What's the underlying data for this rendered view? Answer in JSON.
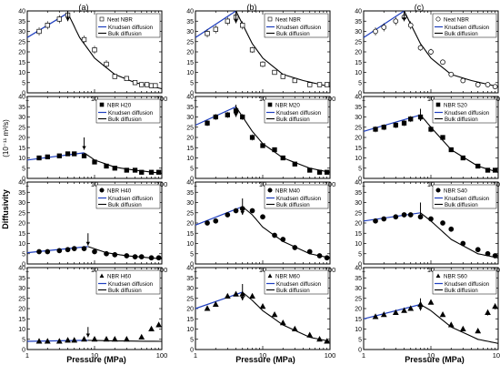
{
  "figure": {
    "column_letters": [
      "(a)",
      "(b)",
      "(c)"
    ],
    "xlabel": "Pressure (MPa)",
    "ylabel_main": "Diffusivity",
    "ylabel_unit": "(10⁻¹¹ m²/s)",
    "legend_knudsen": "Knudsen diffusion",
    "legend_bulk": "Bulk diffusion",
    "x_tick_labels": [
      "1",
      "10",
      "100"
    ]
  },
  "colors": {
    "knudsen": "#1f3fbf",
    "bulk": "#000000",
    "axis": "#000000"
  },
  "chart_data": [
    {
      "type": "scatter",
      "panel": "a-top",
      "sample": "Neat NBR",
      "marker": "open-square",
      "xscale": "log",
      "xlim": [
        1,
        100
      ],
      "ylim": [
        0,
        40
      ],
      "yticks": [
        0,
        5,
        10,
        15,
        20,
        25,
        30,
        35,
        40
      ],
      "x": [
        1.5,
        2,
        3,
        4,
        7,
        10,
        15,
        20,
        30,
        40,
        50,
        60,
        70,
        80
      ],
      "y": [
        30,
        33,
        36,
        38,
        26,
        21,
        14,
        8,
        7,
        5,
        4,
        4,
        3.5,
        3.5
      ],
      "err": [
        2,
        2,
        2,
        2,
        2,
        2,
        2,
        1,
        1,
        1,
        1,
        1,
        1,
        1
      ],
      "knudsen": [
        [
          1,
          27
        ],
        [
          4,
          39
        ]
      ],
      "bulk": [
        [
          4,
          39
        ],
        [
          6,
          27
        ],
        [
          10,
          17
        ],
        [
          20,
          9
        ],
        [
          40,
          5
        ],
        [
          100,
          2
        ]
      ],
      "arrow": {
        "x": 4,
        "y_tip": 35,
        "y_tail": 40
      }
    },
    {
      "type": "scatter",
      "panel": "a-mid1",
      "sample": "NBR H20",
      "marker": "filled-square",
      "xscale": "log",
      "xlim": [
        1,
        100
      ],
      "ylim": [
        0,
        40
      ],
      "yticks": [
        0,
        5,
        10,
        15,
        20,
        25,
        30,
        35,
        40
      ],
      "x": [
        1.5,
        2,
        3,
        4,
        5,
        7,
        10,
        15,
        20,
        30,
        40,
        50,
        70,
        90
      ],
      "y": [
        10,
        10.5,
        11,
        12,
        12,
        11,
        8,
        6,
        5,
        4,
        4,
        3,
        3,
        3
      ],
      "err": [
        1,
        1,
        1,
        1,
        1,
        1,
        1,
        0.5,
        0.5,
        0.5,
        0.5,
        0.5,
        0.5,
        0.5
      ],
      "knudsen": [
        [
          1,
          9
        ],
        [
          7,
          12.5
        ]
      ],
      "bulk": [
        [
          7,
          12.5
        ],
        [
          10,
          9
        ],
        [
          20,
          5.5
        ],
        [
          40,
          4
        ],
        [
          100,
          2.5
        ]
      ],
      "arrow": {
        "x": 7,
        "y_tip": 14,
        "y_tail": 20
      }
    },
    {
      "type": "scatter",
      "panel": "a-mid2",
      "sample": "NBR H40",
      "marker": "filled-circle",
      "xscale": "log",
      "xlim": [
        1,
        100
      ],
      "ylim": [
        0,
        40
      ],
      "yticks": [
        0,
        5,
        10,
        15,
        20,
        25,
        30,
        35,
        40
      ],
      "x": [
        1.5,
        2,
        3,
        4,
        5,
        7,
        10,
        15,
        20,
        30,
        40,
        50,
        70,
        90
      ],
      "y": [
        6,
        6,
        6.5,
        7,
        7.5,
        7.5,
        6,
        5,
        4.5,
        4,
        3.5,
        3.5,
        3,
        3
      ],
      "err": [
        0.5,
        0.5,
        0.5,
        0.5,
        0.5,
        0.5,
        0.5,
        0.5,
        0.5,
        0.5,
        0.5,
        0.5,
        0.5,
        0.5
      ],
      "knudsen": [
        [
          1,
          5.5
        ],
        [
          8,
          8.5
        ]
      ],
      "bulk": [
        [
          8,
          8.5
        ],
        [
          15,
          5.5
        ],
        [
          30,
          4
        ],
        [
          100,
          2.5
        ]
      ],
      "arrow": {
        "x": 8,
        "y_tip": 9,
        "y_tail": 15
      }
    },
    {
      "type": "scatter",
      "panel": "a-bot",
      "sample": "NBR H60",
      "marker": "filled-triangle",
      "xscale": "log",
      "xlim": [
        1,
        100
      ],
      "ylim": [
        0,
        40
      ],
      "yticks": [
        0,
        5,
        10,
        15,
        20,
        25,
        30,
        35,
        40
      ],
      "x": [
        1.5,
        2,
        3,
        4,
        5,
        7,
        10,
        15,
        20,
        30,
        50,
        70,
        90
      ],
      "y": [
        4,
        4,
        4,
        4.5,
        4.5,
        5,
        5,
        5,
        5,
        5,
        6,
        10,
        12
      ],
      "err": [
        0.5,
        0.5,
        0.5,
        0.5,
        0.5,
        0.5,
        0.5,
        0.5,
        0.5,
        0.5,
        0.5,
        1,
        1
      ],
      "knudsen": [
        [
          1,
          4
        ],
        [
          8,
          4.5
        ]
      ],
      "bulk": [
        [
          8,
          4.5
        ],
        [
          20,
          4.2
        ],
        [
          100,
          4
        ]
      ],
      "arrow": {
        "x": 8,
        "y_tip": 6,
        "y_tail": 11
      }
    },
    {
      "type": "scatter",
      "panel": "b-top",
      "sample": "Neat NBR",
      "marker": "open-square",
      "xscale": "log",
      "xlim": [
        1,
        100
      ],
      "ylim": [
        0,
        40
      ],
      "yticks": [
        0,
        5,
        10,
        15,
        20,
        25,
        30,
        35,
        40
      ],
      "x": [
        1.5,
        2,
        3,
        4,
        5,
        7,
        10,
        15,
        20,
        30,
        50,
        70,
        90
      ],
      "y": [
        29,
        31,
        35,
        37,
        33,
        21,
        14,
        10,
        8,
        6,
        4,
        4,
        4
      ],
      "err": [
        2,
        2,
        2,
        2,
        2,
        1.5,
        1.5,
        1,
        1,
        1,
        1,
        1,
        1
      ],
      "knudsen": [
        [
          1,
          27
        ],
        [
          4,
          40
        ]
      ],
      "bulk": [
        [
          4,
          40
        ],
        [
          7,
          24
        ],
        [
          10,
          17
        ],
        [
          20,
          9
        ],
        [
          40,
          6
        ],
        [
          100,
          3
        ]
      ],
      "arrow": {
        "x": 4,
        "y_tip": 34,
        "y_tail": 40
      }
    },
    {
      "type": "scatter",
      "panel": "b-mid1",
      "sample": "NBR M20",
      "marker": "filled-square",
      "xscale": "log",
      "xlim": [
        1,
        100
      ],
      "ylim": [
        0,
        40
      ],
      "yticks": [
        0,
        5,
        10,
        15,
        20,
        25,
        30,
        35,
        40
      ],
      "x": [
        1.5,
        2,
        3,
        4,
        5,
        7,
        10,
        15,
        20,
        30,
        50,
        70,
        90
      ],
      "y": [
        27,
        30,
        31,
        33,
        30,
        20,
        16,
        14,
        10,
        7,
        4,
        3,
        3
      ],
      "err": [
        1.5,
        1.5,
        1.5,
        1.5,
        1.5,
        1.5,
        1,
        1,
        1,
        1,
        1,
        1,
        1
      ],
      "knudsen": [
        [
          1,
          26
        ],
        [
          4,
          35
        ]
      ],
      "bulk": [
        [
          4,
          35
        ],
        [
          7,
          23
        ],
        [
          10,
          17
        ],
        [
          20,
          10
        ],
        [
          50,
          5
        ],
        [
          100,
          3
        ]
      ],
      "arrow": {
        "x": 4,
        "y_tip": 30,
        "y_tail": 36
      }
    },
    {
      "type": "scatter",
      "panel": "b-mid2",
      "sample": "NBR M40",
      "marker": "filled-circle",
      "xscale": "log",
      "xlim": [
        1,
        100
      ],
      "ylim": [
        0,
        40
      ],
      "yticks": [
        0,
        5,
        10,
        15,
        20,
        25,
        30,
        35,
        40
      ],
      "x": [
        1.5,
        2,
        3,
        4,
        5,
        7,
        10,
        15,
        20,
        30,
        50,
        70,
        90
      ],
      "y": [
        20,
        21,
        24,
        26,
        27,
        26,
        23,
        14,
        12,
        8,
        6,
        4,
        3
      ],
      "err": [
        1,
        1,
        1,
        1,
        1,
        1,
        1,
        1,
        1,
        1,
        1,
        1,
        1
      ],
      "knudsen": [
        [
          1,
          19
        ],
        [
          5,
          28
        ]
      ],
      "bulk": [
        [
          5,
          28
        ],
        [
          7,
          24
        ],
        [
          10,
          18
        ],
        [
          20,
          11
        ],
        [
          50,
          5
        ],
        [
          100,
          3
        ]
      ],
      "arrow": {
        "x": 5,
        "y_tip": 24,
        "y_tail": 32
      }
    },
    {
      "type": "scatter",
      "panel": "b-bot",
      "sample": "NBR M60",
      "marker": "filled-triangle",
      "xscale": "log",
      "xlim": [
        1,
        100
      ],
      "ylim": [
        0,
        40
      ],
      "yticks": [
        0,
        5,
        10,
        15,
        20,
        25,
        30,
        35,
        40
      ],
      "x": [
        1.5,
        2,
        3,
        4,
        5,
        7,
        10,
        15,
        20,
        30,
        50,
        70,
        90
      ],
      "y": [
        20,
        22,
        26,
        27,
        27,
        26,
        21,
        17,
        13,
        10,
        7,
        5,
        4
      ],
      "err": [
        1,
        1,
        1,
        1,
        1,
        1,
        1,
        1,
        1,
        1,
        1,
        1,
        1
      ],
      "knudsen": [
        [
          1,
          20
        ],
        [
          5,
          28
        ]
      ],
      "bulk": [
        [
          5,
          28
        ],
        [
          7,
          24
        ],
        [
          10,
          19
        ],
        [
          20,
          12
        ],
        [
          50,
          6
        ],
        [
          100,
          4
        ]
      ],
      "arrow": {
        "x": 5,
        "y_tip": 24,
        "y_tail": 32
      }
    },
    {
      "type": "scatter",
      "panel": "c-top",
      "sample": "Neat NBR",
      "marker": "open-circle",
      "xscale": "log",
      "xlim": [
        1,
        100
      ],
      "ylim": [
        0,
        40
      ],
      "yticks": [
        0,
        5,
        10,
        15,
        20,
        25,
        30,
        35,
        40
      ],
      "x": [
        1.5,
        2,
        3,
        4,
        5,
        7,
        10,
        15,
        20,
        30,
        50,
        70,
        90
      ],
      "y": [
        30,
        32,
        35,
        37,
        33,
        22,
        20,
        15,
        9,
        6,
        4,
        4,
        3
      ],
      "err": [
        2,
        2,
        2,
        2,
        2,
        1.5,
        1.5,
        1,
        1,
        1,
        1,
        1,
        1
      ],
      "knudsen": [
        [
          1,
          27
        ],
        [
          4,
          40
        ]
      ],
      "bulk": [
        [
          4,
          40
        ],
        [
          7,
          24
        ],
        [
          10,
          17
        ],
        [
          20,
          9
        ],
        [
          40,
          6
        ],
        [
          100,
          3
        ]
      ],
      "arrow": {
        "x": 4,
        "y_tip": 35,
        "y_tail": 40
      }
    },
    {
      "type": "scatter",
      "panel": "c-mid1",
      "sample": "NBR S20",
      "marker": "filled-square",
      "xscale": "log",
      "xlim": [
        1,
        100
      ],
      "ylim": [
        0,
        40
      ],
      "yticks": [
        0,
        5,
        10,
        15,
        20,
        25,
        30,
        35,
        40
      ],
      "x": [
        1.5,
        2,
        3,
        4,
        5,
        7,
        10,
        15,
        20,
        30,
        50,
        70,
        90
      ],
      "y": [
        24,
        25,
        26,
        27,
        29,
        30,
        24,
        20,
        14,
        10,
        6,
        4,
        4
      ],
      "err": [
        1.5,
        1.5,
        1.5,
        1.5,
        1.5,
        1.5,
        1.5,
        1,
        1,
        1,
        1,
        1,
        1
      ],
      "knudsen": [
        [
          1,
          23
        ],
        [
          7,
          31
        ]
      ],
      "bulk": [
        [
          7,
          31
        ],
        [
          10,
          25
        ],
        [
          20,
          14
        ],
        [
          50,
          6
        ],
        [
          100,
          3
        ]
      ],
      "arrow": {
        "x": 7,
        "y_tip": 28,
        "y_tail": 34
      }
    },
    {
      "type": "scatter",
      "panel": "c-mid2",
      "sample": "NBR S40",
      "marker": "filled-circle",
      "xscale": "log",
      "xlim": [
        1,
        100
      ],
      "ylim": [
        0,
        40
      ],
      "yticks": [
        0,
        5,
        10,
        15,
        20,
        25,
        30,
        35,
        40
      ],
      "x": [
        1.5,
        2,
        3,
        4,
        5,
        7,
        10,
        15,
        20,
        30,
        50,
        70,
        90
      ],
      "y": [
        21,
        22,
        23,
        24,
        24,
        23,
        22,
        20,
        17,
        10,
        7,
        5,
        4
      ],
      "err": [
        1,
        1,
        1,
        1,
        1,
        1,
        1,
        1,
        1,
        1,
        1,
        1,
        1
      ],
      "knudsen": [
        [
          1,
          21
        ],
        [
          7,
          25
        ]
      ],
      "bulk": [
        [
          7,
          25
        ],
        [
          10,
          21
        ],
        [
          20,
          12
        ],
        [
          50,
          5
        ],
        [
          100,
          3
        ]
      ],
      "arrow": {
        "x": 7,
        "y_tip": 22,
        "y_tail": 30
      }
    },
    {
      "type": "scatter",
      "panel": "c-bot",
      "sample": "NBR S60",
      "marker": "filled-triangle",
      "xscale": "log",
      "xlim": [
        1,
        100
      ],
      "ylim": [
        0,
        40
      ],
      "yticks": [
        0,
        5,
        10,
        15,
        20,
        25,
        30,
        35,
        40
      ],
      "x": [
        1.5,
        2,
        3,
        4,
        5,
        7,
        10,
        15,
        20,
        30,
        50,
        70,
        90
      ],
      "y": [
        16,
        17,
        18,
        19,
        20,
        22,
        23,
        17,
        12,
        10,
        9,
        18,
        21
      ],
      "err": [
        1,
        1,
        1,
        1,
        1,
        1,
        1,
        1,
        1,
        1,
        1,
        1.5,
        1.5
      ],
      "knudsen": [
        [
          1,
          15
        ],
        [
          7,
          22
        ]
      ],
      "bulk": [
        [
          7,
          22
        ],
        [
          10,
          19
        ],
        [
          20,
          11
        ],
        [
          50,
          5
        ],
        [
          100,
          3
        ]
      ],
      "arrow": {
        "x": 7,
        "y_tip": 19,
        "y_tail": 25
      }
    }
  ]
}
